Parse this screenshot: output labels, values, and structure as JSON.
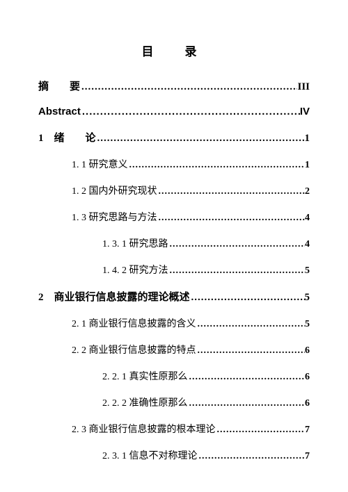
{
  "title": "目　录",
  "entries": [
    {
      "label": "摘　　要",
      "page": "III",
      "bold": true,
      "indent": 0,
      "spaced": false
    },
    {
      "label": "Abstract",
      "page": "IV",
      "bold": true,
      "indent": 0,
      "spaced": false,
      "abstract": true
    },
    {
      "label": "1　绪　　论",
      "page": "1",
      "bold": true,
      "indent": 0,
      "spaced": false
    },
    {
      "label": "1. 1 研究意义",
      "page": "1",
      "bold": false,
      "indent": 1
    },
    {
      "label": "1. 2 国内外研究现状 ",
      "page": "2",
      "bold": false,
      "indent": 1
    },
    {
      "label": "1. 3 研究思路与方法 ",
      "page": "4",
      "bold": false,
      "indent": 1
    },
    {
      "label": "1. 3. 1 研究思路 ",
      "page": "4",
      "bold": false,
      "indent": 2
    },
    {
      "label": "1. 4. 2 研究方法 ",
      "page": "5",
      "bold": false,
      "indent": 2
    },
    {
      "label": "2　商业银行信息披露的理论概述 ",
      "page": "5",
      "bold": true,
      "indent": 0
    },
    {
      "label": "2. 1 商业银行信息披露的含义 ",
      "page": "5",
      "bold": false,
      "indent": 1
    },
    {
      "label": "2. 2 商业银行信息披露的特点 ",
      "page": "6",
      "bold": false,
      "indent": 1
    },
    {
      "label": "2. 2. 1 真实性原那么 ",
      "page": "6",
      "bold": false,
      "indent": 2
    },
    {
      "label": "2. 2. 2 准确性原那么 ",
      "page": "6",
      "bold": false,
      "indent": 2
    },
    {
      "label": "2. 3 商业银行信息披露的根本理论 ",
      "page": "7",
      "bold": false,
      "indent": 1
    },
    {
      "label": "2. 3. 1 信息不对称理论 ",
      "page": "7",
      "bold": false,
      "indent": 2
    }
  ]
}
